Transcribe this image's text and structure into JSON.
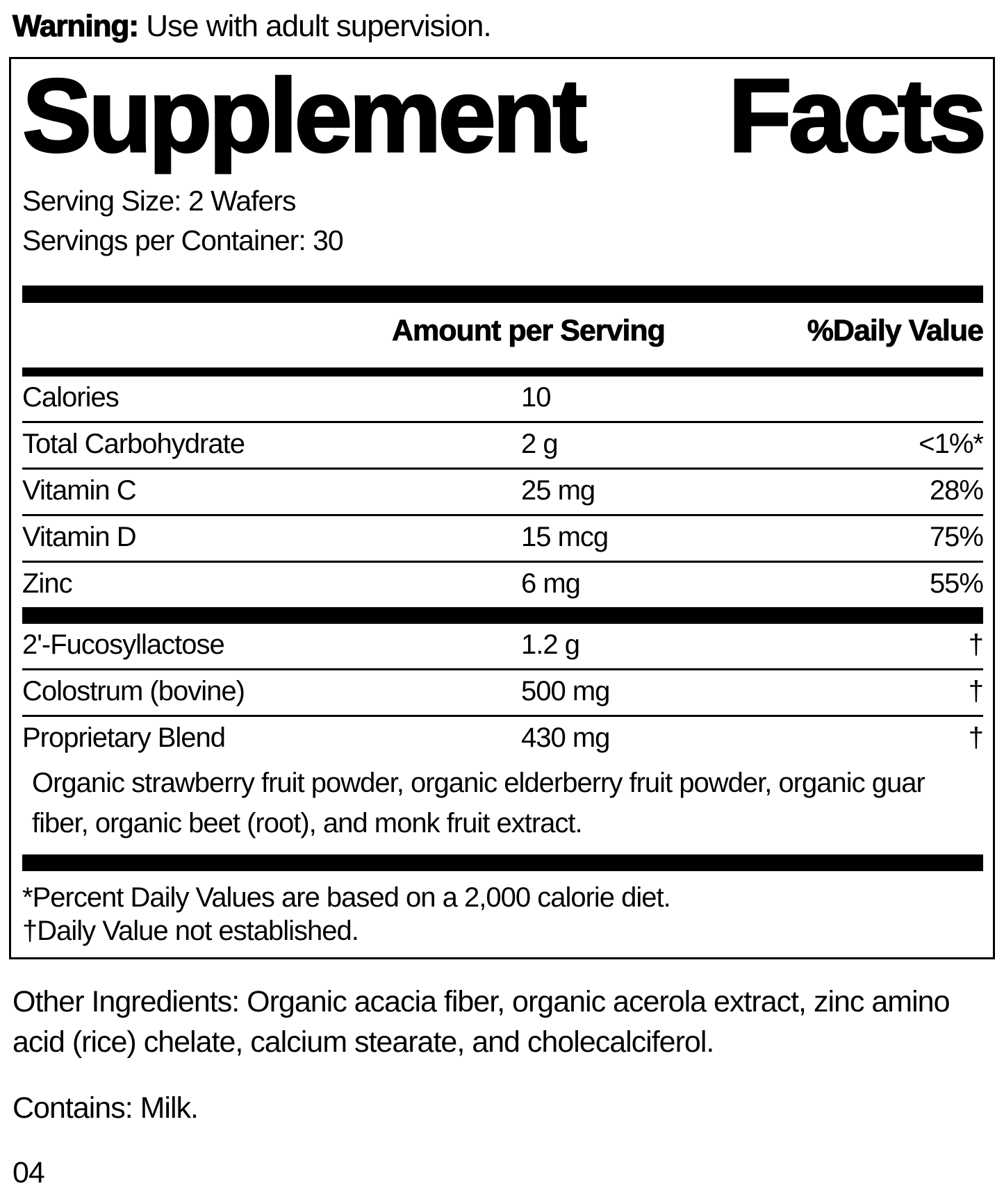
{
  "warning": {
    "label": "Warning:",
    "text": " Use with adult supervision."
  },
  "panel": {
    "title_word1": "Supplement",
    "title_word2": "Facts",
    "serving_size": "Serving Size: 2 Wafers",
    "servings_per_container": "Servings per Container: 30",
    "columns": {
      "amount": "Amount per Serving",
      "daily_value": "%Daily Value"
    },
    "rows": [
      {
        "name": "Calories",
        "amount": "10",
        "dv": ""
      },
      {
        "name": "Total Carbohydrate",
        "amount": "2 g",
        "dv": "<1%*"
      },
      {
        "name": "Vitamin C",
        "amount": "25 mg",
        "dv": "28%"
      },
      {
        "name": "Vitamin D",
        "amount": "15 mcg",
        "dv": "75%"
      },
      {
        "name": "Zinc",
        "amount": "6 mg",
        "dv": "55%"
      }
    ],
    "rows2": [
      {
        "name": "2'-Fucosyllactose",
        "amount": "1.2 g",
        "dv": "†"
      },
      {
        "name": "Colostrum (bovine)",
        "amount": "500 mg",
        "dv": "†"
      },
      {
        "name": "Proprietary Blend",
        "amount": "430 mg",
        "dv": "†"
      }
    ],
    "blend_description": "Organic strawberry fruit powder, organic elderberry fruit powder, organic guar fiber, organic beet (root), and monk fruit extract.",
    "footnote_percent": "*Percent Daily Values are based on a 2,000 calorie diet.",
    "footnote_dagger": "†Daily Value not established."
  },
  "other_ingredients": "Other Ingredients: Organic acacia fiber, organic acerola extract, zinc amino acid (rice) chelate, calcium stearate, and cholecalciferol.",
  "contains": "Contains: Milk.",
  "code": "04",
  "colors": {
    "text": "#000000",
    "background": "#ffffff"
  }
}
